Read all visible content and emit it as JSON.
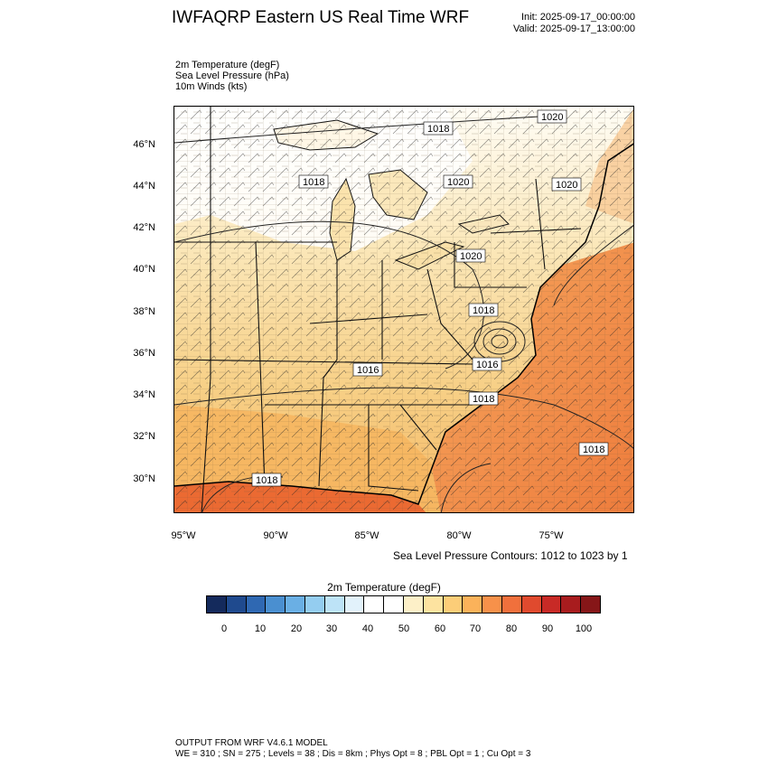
{
  "header": {
    "title": "IWFAQRP Eastern US Real Time WRF",
    "init": "Init: 2025-09-17_00:00:00",
    "valid": "Valid: 2025-09-17_13:00:00"
  },
  "fields": [
    "2m Temperature   (degF)",
    "Sea Level Pressure   (hPa)",
    "10m Winds   (kts)"
  ],
  "map": {
    "lat_labels": [
      "46°N",
      "44°N",
      "42°N",
      "40°N",
      "38°N",
      "36°N",
      "34°N",
      "32°N",
      "30°N"
    ],
    "lon_labels": [
      "95°W",
      "90°W",
      "85°W",
      "80°W",
      "75°W"
    ],
    "pressure_labels": [
      "1018",
      "1020",
      "1018",
      "1020",
      "1020",
      "1020",
      "1018",
      "1016",
      "1016",
      "1018",
      "1018",
      "1018"
    ],
    "contour_note": "Sea Level Pressure Contours: 1012 to 1023 by 1",
    "colors": {
      "land_warm": "#f5c77a",
      "land_cool": "#ffffff",
      "ocean_warm": "#f4904a",
      "ocean_hot": "#e8632e"
    }
  },
  "colorbar": {
    "title": "2m Temperature  (degF)",
    "colors": [
      "#142a5c",
      "#1f4a8e",
      "#2f68b2",
      "#4a8fd0",
      "#6aafe4",
      "#94cdf0",
      "#bde3f7",
      "#e2f2fb",
      "#ffffff",
      "#ffffff",
      "#fdf0c8",
      "#fde3a0",
      "#fccd78",
      "#fbb25a",
      "#f7914a",
      "#f0703c",
      "#e04a2e",
      "#c82a26",
      "#a81c1e",
      "#861618"
    ],
    "ticks": [
      "0",
      "10",
      "20",
      "30",
      "40",
      "50",
      "60",
      "70",
      "80",
      "90",
      "100"
    ]
  },
  "footer": {
    "line1": "OUTPUT FROM WRF V4.6.1 MODEL",
    "line2": "WE = 310 ; SN = 275 ; Levels = 38 ; Dis = 8km ; Phys Opt = 8 ; PBL Opt = 1 ; Cu Opt = 3"
  }
}
